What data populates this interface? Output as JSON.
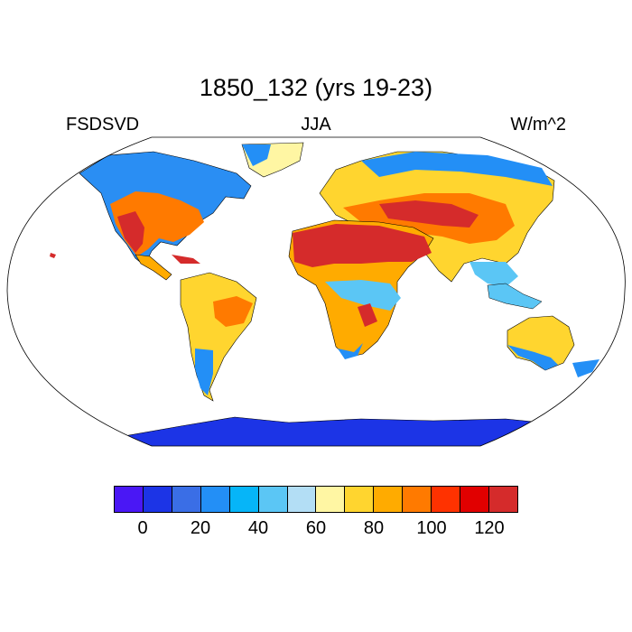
{
  "title": "1850_132 (yrs 19-23)",
  "left_label": "FSDSVD",
  "center_label": "JJA",
  "right_label": "W/m^2",
  "colorbar": {
    "colors": [
      "#4a17f5",
      "#1c34e6",
      "#3a6ee6",
      "#238ff6",
      "#06b5f8",
      "#5bc6f5",
      "#b3def5",
      "#fff6a3",
      "#ffd52f",
      "#ffab00",
      "#ff7a00",
      "#ff3200",
      "#e10000",
      "#d52b2b"
    ],
    "tick_labels": [
      "0",
      "20",
      "40",
      "60",
      "80",
      "100",
      "120"
    ]
  }
}
